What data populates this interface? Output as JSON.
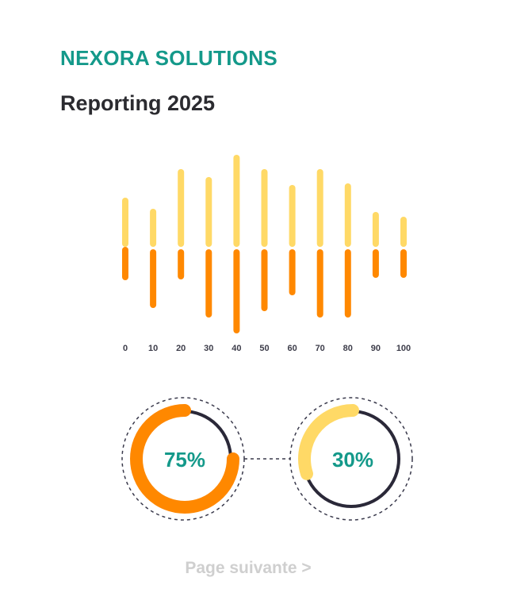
{
  "header": {
    "company": "NEXORA SOLUTIONS",
    "title": "Reporting 2025"
  },
  "chart_data": [
    {
      "type": "bar",
      "categories": [
        "0",
        "10",
        "20",
        "30",
        "40",
        "50",
        "60",
        "70",
        "80",
        "90",
        "100"
      ],
      "series": [
        {
          "values": [
            54,
            40,
            90,
            80,
            108,
            90,
            70,
            90,
            72,
            36,
            30
          ]
        },
        {
          "values": [
            -34,
            -66,
            -30,
            -78,
            -98,
            -70,
            -50,
            -78,
            -78,
            -28,
            -28
          ]
        }
      ],
      "colors": [
        "#ffd966",
        "#ff8800"
      ]
    },
    {
      "type": "pie",
      "values": [
        75,
        30
      ],
      "labels": [
        "75%",
        "30%"
      ],
      "colors": [
        "#ff8800",
        "#ffd966"
      ],
      "track_color": "#2a2838"
    }
  ],
  "footer": {
    "next_label": "Page suivante >"
  }
}
